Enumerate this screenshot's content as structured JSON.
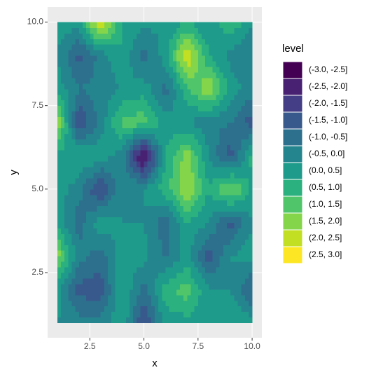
{
  "chart_data": {
    "type": "filled-contour",
    "xlabel": "x",
    "ylabel": "y",
    "legend_title": "level",
    "x": [
      1,
      2,
      3,
      4,
      5,
      6,
      7,
      8,
      9,
      10
    ],
    "y": [
      1,
      2,
      3,
      4,
      5,
      6,
      7,
      8,
      9,
      10
    ],
    "z": [
      [
        0,
        -0.3,
        -0.3,
        0.5,
        -1.6,
        0.2,
        0.3,
        0.2,
        0.5,
        0.3
      ],
      [
        0.2,
        -1.2,
        -1.3,
        0.5,
        -0.7,
        0.8,
        1.3,
        0,
        0,
        -1.2
      ],
      [
        1.8,
        -0.3,
        -0.8,
        0.3,
        0.2,
        -0.6,
        0.2,
        -1.3,
        0,
        0.3
      ],
      [
        0.3,
        -0.8,
        0.4,
        0,
        0,
        -0.8,
        0.5,
        0,
        -1.2,
        0
      ],
      [
        0.3,
        -0.3,
        -1.7,
        0,
        0,
        0.8,
        2.0,
        0.5,
        1.8,
        0.3
      ],
      [
        0.3,
        0.5,
        0.3,
        -0.3,
        -2.9,
        0.5,
        1.8,
        0,
        -1.3,
        0.7
      ],
      [
        2.0,
        -1.5,
        -0.3,
        1.2,
        1.3,
        0.3,
        0,
        -0.3,
        -0.5,
        -1.3
      ],
      [
        0.3,
        -0.5,
        -0.3,
        0,
        0.3,
        -0.7,
        0.8,
        2.0,
        0.3,
        -0.3
      ],
      [
        0,
        -1.2,
        -0.3,
        0.5,
        -0.8,
        0.3,
        2.6,
        0.5,
        -0.2,
        -0.5
      ],
      [
        0.2,
        0.3,
        2.7,
        0.5,
        0.2,
        0,
        0.5,
        0,
        1.0,
        0
      ]
    ],
    "breaks": [
      -3,
      -2.5,
      -2,
      -1.5,
      -1,
      -0.5,
      0,
      0.5,
      1,
      1.5,
      2,
      2.5,
      3
    ],
    "levels": [
      "(-3.0, -2.5]",
      "(-2.5, -2.0]",
      "(-2.0, -1.5]",
      "(-1.5, -1.0]",
      "(-1.0, -0.5]",
      "(-0.5, 0.0]",
      "(0.0, 0.5]",
      "(0.5, 1.0]",
      "(1.0, 1.5]",
      "(1.5, 2.0]",
      "(2.0, 2.5]",
      "(2.5, 3.0]"
    ],
    "colors": [
      "#440154",
      "#482173",
      "#433E85",
      "#38598C",
      "#2D708E",
      "#25858E",
      "#1E9B8A",
      "#2BB07F",
      "#51C56A",
      "#85D54A",
      "#C2DF23",
      "#FDE725"
    ],
    "xlim": [
      0.55,
      10.45
    ],
    "ylim": [
      0.55,
      10.45
    ],
    "xticks": [
      2.5,
      {
        "value": 5,
        "label": "5.0"
      },
      7.5,
      {
        "value": 10,
        "label": "10.0"
      }
    ],
    "yticks": [
      2.5,
      {
        "value": 5,
        "label": "5.0"
      },
      7.5,
      {
        "value": 10,
        "label": "10.0"
      }
    ],
    "grid": true
  }
}
